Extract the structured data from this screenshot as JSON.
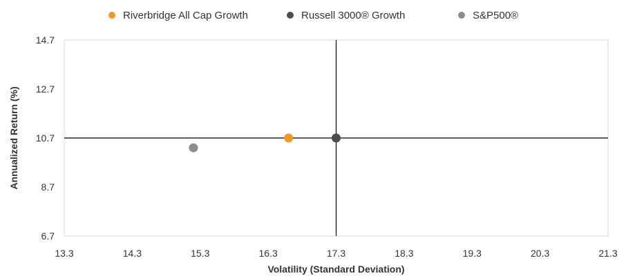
{
  "chart_data": {
    "type": "scatter",
    "title": "",
    "xlabel": "Volatility (Standard Deviation)",
    "ylabel": "Annualized Return (%)",
    "xlim": [
      13.3,
      21.3
    ],
    "ylim": [
      6.7,
      14.7
    ],
    "x_ticks": [
      "13.3",
      "14.3",
      "15.3",
      "16.3",
      "17.3",
      "18.3",
      "19.3",
      "20.3",
      "21.3"
    ],
    "y_ticks": [
      "6.7",
      "8.7",
      "10.7",
      "12.7",
      "14.7"
    ],
    "grid": false,
    "legend_position": "top",
    "crosshair": {
      "x": 17.3,
      "y": 10.7
    },
    "series": [
      {
        "name": "Riverbridge All Cap Growth",
        "color": "#F39A1E",
        "points": [
          {
            "x": 16.6,
            "y": 10.7
          }
        ]
      },
      {
        "name": "Russell 3000® Growth",
        "color": "#4D4D4F",
        "points": [
          {
            "x": 17.3,
            "y": 10.7
          }
        ]
      },
      {
        "name": "S&P500®",
        "color": "#8C8C8C",
        "points": [
          {
            "x": 15.2,
            "y": 10.3
          }
        ]
      }
    ]
  }
}
